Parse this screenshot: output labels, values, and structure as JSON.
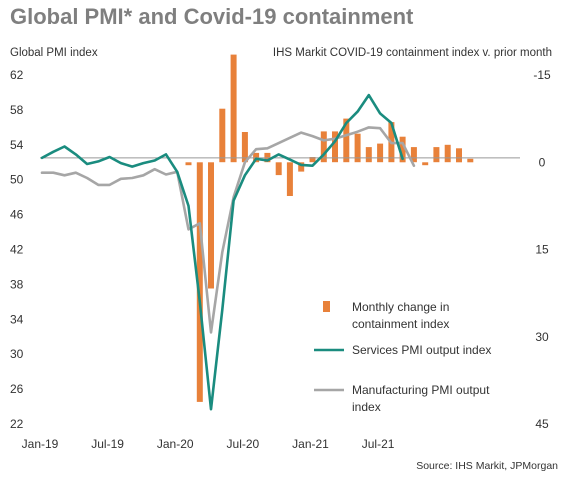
{
  "title": "Global PMI* and Covid-19 containment",
  "left_axis_title": "Global  PMI index",
  "right_axis_title": "IHS Markit COVID-19 containment index v. prior month",
  "source": "Source: IHS Markit, JPMorgan",
  "colors": {
    "title": "#7f7f7f",
    "bars": "#e8813a",
    "services": "#1a8c7f",
    "manufacturing": "#a6a6a6",
    "reference_line": "#999999"
  },
  "chart_data": {
    "type": "bar+line",
    "title": "Global PMI* and Covid-19 containment",
    "x_tick_labels": [
      "Jan-19",
      "Jul-19",
      "Jan-20",
      "Jul-20",
      "Jan-21",
      "Jul-21"
    ],
    "months": [
      "Jan-19",
      "Feb-19",
      "Mar-19",
      "Apr-19",
      "May-19",
      "Jun-19",
      "Jul-19",
      "Aug-19",
      "Sep-19",
      "Oct-19",
      "Nov-19",
      "Dec-19",
      "Jan-20",
      "Feb-20",
      "Mar-20",
      "Apr-20",
      "May-20",
      "Jun-20",
      "Jul-20",
      "Aug-20",
      "Sep-20",
      "Oct-20",
      "Nov-20",
      "Dec-20",
      "Jan-21",
      "Feb-21",
      "Mar-21",
      "Apr-21",
      "May-21",
      "Jun-21",
      "Jul-21",
      "Aug-21",
      "Sep-21",
      "Oct-21",
      "Nov-21",
      "Dec-21"
    ],
    "left_axis": {
      "label": "Global  PMI index",
      "ylim": [
        22,
        62
      ],
      "ticks": [
        22,
        26,
        30,
        34,
        38,
        42,
        46,
        50,
        54,
        58,
        62
      ]
    },
    "right_axis": {
      "label": "IHS Markit COVID-19 containment index v. prior month",
      "ylim": [
        -15,
        45
      ],
      "reversed": true,
      "tick_labels": [
        "-15",
        "0",
        "15",
        "30",
        "45"
      ]
    },
    "reference_line_pmi": 52.5,
    "series": [
      {
        "name": "Monthly change in containment index",
        "type": "bar",
        "axis": "right",
        "color": "#e8813a",
        "start_index": 13,
        "values": [
          0.5,
          41.2,
          21.7,
          -9.2,
          -18.5,
          -5.2,
          -1.6,
          -1.6,
          2.2,
          5.8,
          1.6,
          -0.9,
          -5.3,
          -5.3,
          -7.5,
          -4.9,
          -2.6,
          -3.2,
          -6.9,
          -4.4,
          -2.6,
          0.5,
          -2.6,
          -3.0,
          -2.4,
          -0.6
        ]
      },
      {
        "name": "Services PMI output index",
        "type": "line",
        "axis": "left",
        "color": "#1a8c7f",
        "start_index": 0,
        "values": [
          52.5,
          53.2,
          53.8,
          52.9,
          51.8,
          52.1,
          52.6,
          51.9,
          51.5,
          51.9,
          52.2,
          52.9,
          50.9,
          47.0,
          36.0,
          23.7,
          35.1,
          47.6,
          50.5,
          52.4,
          52.2,
          52.9,
          52.3,
          51.7,
          51.6,
          52.9,
          54.4,
          56.5,
          57.8,
          59.7,
          57.6,
          56.5,
          52.4
        ]
      },
      {
        "name": "Manufacturing PMI output index",
        "type": "line",
        "axis": "left",
        "color": "#a6a6a6",
        "start_index": 0,
        "values": [
          50.8,
          50.8,
          50.5,
          50.8,
          50.2,
          49.4,
          49.4,
          50.1,
          50.2,
          50.5,
          51.2,
          50.6,
          50.9,
          44.3,
          45.0,
          32.5,
          41.7,
          48.0,
          52.0,
          53.5,
          53.6,
          54.2,
          54.8,
          55.4,
          55.0,
          54.5,
          54.7,
          55.1,
          55.5,
          56.0,
          55.9,
          54.2,
          54.2,
          51.6
        ]
      }
    ],
    "legend_position": "bottom-right"
  }
}
